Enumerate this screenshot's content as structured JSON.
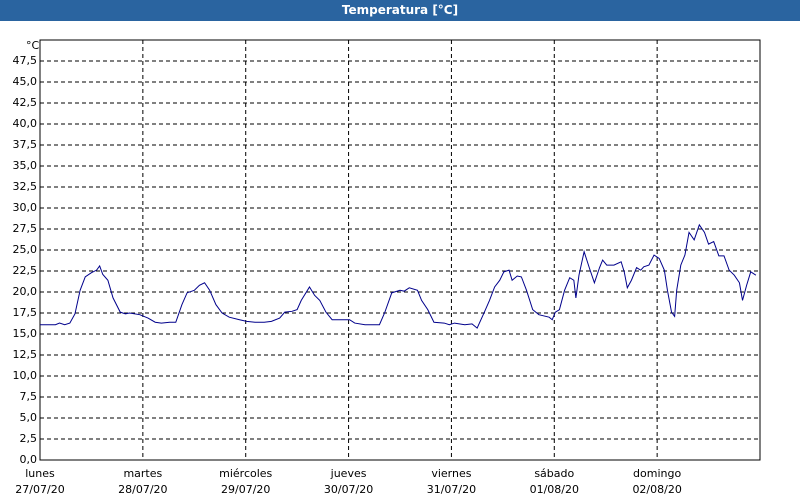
{
  "chart_data": {
    "type": "line",
    "title": "Temperatura [°C]",
    "y_unit": "°C",
    "xlim": [
      0,
      7
    ],
    "ylim": [
      0,
      50
    ],
    "xticks": [
      {
        "value": 0,
        "label": "lunes"
      },
      {
        "value": 1,
        "label": "martes"
      },
      {
        "value": 2,
        "label": "miércoles"
      },
      {
        "value": 3,
        "label": "jueves"
      },
      {
        "value": 4,
        "label": "viernes"
      },
      {
        "value": 5,
        "label": "sábado"
      },
      {
        "value": 6,
        "label": "domingo"
      }
    ],
    "xtick_dates": [
      "27/07/20",
      "28/07/20",
      "29/07/20",
      "30/07/20",
      "31/07/20",
      "01/08/20",
      "02/08/20"
    ],
    "yticks": [
      {
        "value": 0,
        "label": "0,0"
      },
      {
        "value": 2.5,
        "label": "2,5"
      },
      {
        "value": 5,
        "label": "5,0"
      },
      {
        "value": 7.5,
        "label": "7,5"
      },
      {
        "value": 10,
        "label": "10,0"
      },
      {
        "value": 12.5,
        "label": "12,5"
      },
      {
        "value": 15,
        "label": "15,0"
      },
      {
        "value": 17.5,
        "label": "17,5"
      },
      {
        "value": 20,
        "label": "20,0"
      },
      {
        "value": 22.5,
        "label": "22,5"
      },
      {
        "value": 25,
        "label": "25,0"
      },
      {
        "value": 27.5,
        "label": "27,5"
      },
      {
        "value": 30,
        "label": "30,0"
      },
      {
        "value": 32.5,
        "label": "32,5"
      },
      {
        "value": 35,
        "label": "35,0"
      },
      {
        "value": 37.5,
        "label": "37,5"
      },
      {
        "value": 40,
        "label": "40,0"
      },
      {
        "value": 42.5,
        "label": "42,5"
      },
      {
        "value": 45,
        "label": "45,0"
      },
      {
        "value": 47.5,
        "label": "47,5"
      }
    ],
    "grid": true,
    "x": [
      0,
      0.15,
      0.19,
      0.24,
      0.29,
      0.34,
      0.39,
      0.44,
      0.5,
      0.55,
      0.58,
      0.61,
      0.66,
      0.71,
      0.78,
      0.83,
      0.87,
      0.97,
      1.05,
      1.12,
      1.18,
      1.26,
      1.32,
      1.38,
      1.43,
      1.5,
      1.55,
      1.6,
      1.65,
      1.71,
      1.77,
      1.84,
      1.94,
      2.01,
      2.09,
      2.18,
      2.25,
      2.33,
      2.38,
      2.45,
      2.5,
      2.54,
      2.62,
      2.67,
      2.72,
      2.78,
      2.84,
      2.96,
      3.01,
      3.06,
      3.16,
      3.25,
      3.3,
      3.35,
      3.42,
      3.5,
      3.54,
      3.59,
      3.67,
      3.71,
      3.77,
      3.83,
      3.93,
      3.98,
      4.03,
      4.13,
      4.2,
      4.25,
      4.32,
      4.37,
      4.42,
      4.47,
      4.51,
      4.56,
      4.59,
      4.64,
      4.68,
      4.73,
      4.79,
      4.85,
      4.95,
      4.98,
      5.01,
      5.05,
      5.1,
      5.15,
      5.19,
      5.21,
      5.24,
      5.29,
      5.34,
      5.39,
      5.44,
      5.47,
      5.51,
      5.58,
      5.65,
      5.68,
      5.71,
      5.75,
      5.8,
      5.84,
      5.87,
      5.92,
      5.97,
      6.02,
      6.07,
      6.1,
      6.14,
      6.17,
      6.19,
      6.23,
      6.27,
      6.31,
      6.36,
      6.41,
      6.46,
      6.5,
      6.55,
      6.6,
      6.65,
      6.7,
      6.75,
      6.8,
      6.83,
      6.87,
      6.91,
      6.96
    ],
    "series": [
      {
        "color": "#00008b",
        "values": [
          16.1,
          16.1,
          16.3,
          16.1,
          16.3,
          17.4,
          20.2,
          21.8,
          22.3,
          22.6,
          23.1,
          22.1,
          21.4,
          19.3,
          17.6,
          17.4,
          17.5,
          17.3,
          16.9,
          16.4,
          16.3,
          16.4,
          16.4,
          18.5,
          19.9,
          20.2,
          20.8,
          21.1,
          20.2,
          18.5,
          17.5,
          17.0,
          16.7,
          16.5,
          16.4,
          16.4,
          16.5,
          16.9,
          17.6,
          17.7,
          17.9,
          19.0,
          20.6,
          19.6,
          19.0,
          17.6,
          16.7,
          16.7,
          16.7,
          16.3,
          16.1,
          16.1,
          16.1,
          17.5,
          19.9,
          20.2,
          20.1,
          20.5,
          20.2,
          19.0,
          17.9,
          16.4,
          16.3,
          16.1,
          16.3,
          16.1,
          16.2,
          15.7,
          17.6,
          19.0,
          20.6,
          21.4,
          22.4,
          22.6,
          21.4,
          21.9,
          21.8,
          20.2,
          17.9,
          17.3,
          17.0,
          16.7,
          17.6,
          17.9,
          20.2,
          21.7,
          21.4,
          19.3,
          22.0,
          24.8,
          22.9,
          21.1,
          22.9,
          23.8,
          23.2,
          23.2,
          23.6,
          22.4,
          20.5,
          21.4,
          22.9,
          22.6,
          23.0,
          23.2,
          24.4,
          24.0,
          22.6,
          20.2,
          17.6,
          17.1,
          20.2,
          23.2,
          24.4,
          27.1,
          26.2,
          28.0,
          27.1,
          25.7,
          26.0,
          24.3,
          24.3,
          22.6,
          22.0,
          21.1,
          19.0,
          20.8,
          22.4,
          22.0
        ]
      }
    ]
  }
}
